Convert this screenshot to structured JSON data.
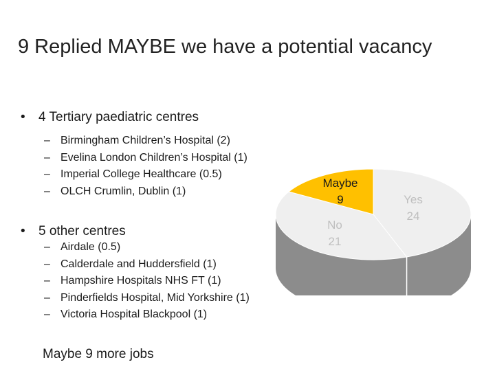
{
  "slide": {
    "title": "9 Replied MAYBE we have a potential vacancy",
    "tertiary": {
      "heading": "4 Tertiary paediatric centres",
      "items": [
        "Birmingham Children’s Hospital (2)",
        "Evelina London Children’s Hospital (1)",
        "Imperial College Healthcare (0.5)",
        "OLCH Crumlin, Dublin (1)"
      ]
    },
    "other": {
      "heading": "5 other centres",
      "items": [
        "Airdale (0.5)",
        "Calderdale and Huddersfield (1)",
        "Hampshire Hospitals NHS FT (1)",
        "Pinderfields Hospital, Mid Yorkshire (1)",
        "Victoria Hospital Blackpool (1)"
      ]
    },
    "summary": "Maybe 9 more jobs"
  },
  "chart_data": {
    "type": "pie",
    "categories": [
      "Yes",
      "No",
      "Maybe"
    ],
    "values": [
      24,
      21,
      9
    ],
    "labels": [
      {
        "name": "Yes",
        "value": "24"
      },
      {
        "name": "No",
        "value": "21"
      },
      {
        "name": "Maybe",
        "value": "9"
      }
    ],
    "colors": {
      "Yes": "#efefef",
      "No": "#efefef",
      "Maybe": "#ffc000",
      "side": "#8c8c8c",
      "label": "#bfbfbf",
      "maybe_label": "#1a1a1a"
    }
  }
}
